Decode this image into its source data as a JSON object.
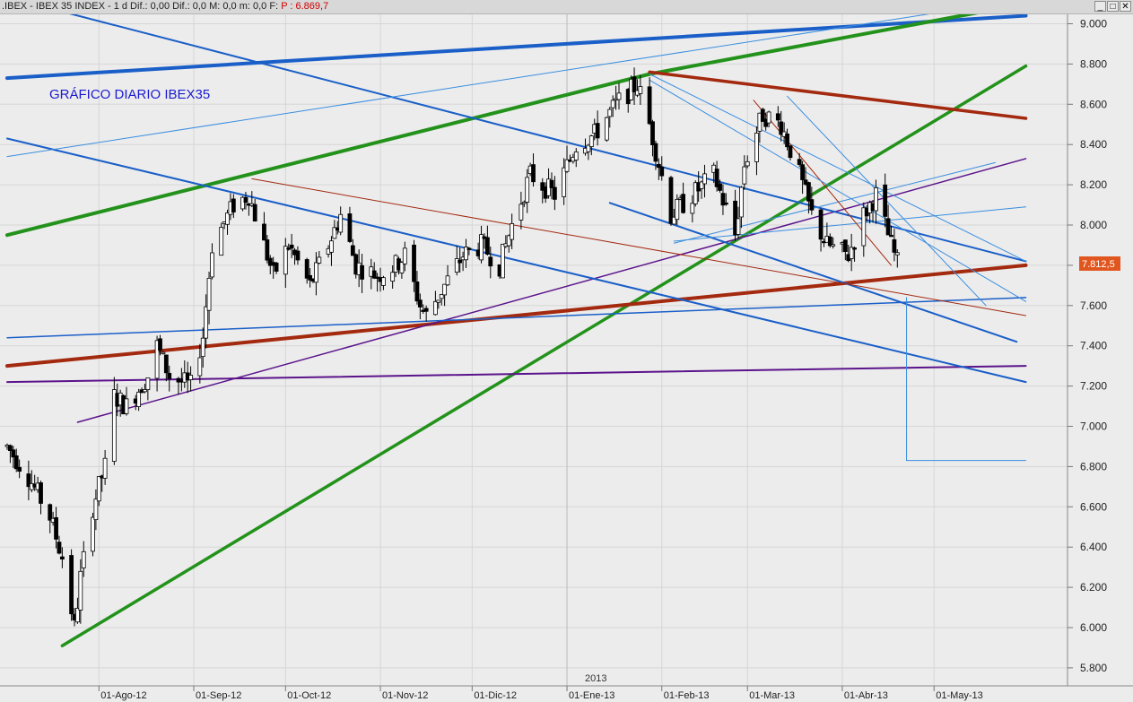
{
  "window": {
    "title": ".IBEX - IBEX 35 INDEX - 1 d Dif.: 0,00 Dif.: 0,0 M: 0,0 m: 0,0 F:",
    "price_label": "P : 6.869,7",
    "buttons": [
      "_",
      "□",
      "✕"
    ]
  },
  "chart_data": {
    "type": "candlestick",
    "title": "GRÁFICO DIARIO IBEX35",
    "year_marker": "2013",
    "last_price_label": "7.812,5",
    "ylim": [
      5800,
      9000
    ],
    "yticks": [
      5800,
      6000,
      6200,
      6400,
      6600,
      6800,
      7000,
      7200,
      7400,
      7600,
      7800,
      8000,
      8200,
      8400,
      8600,
      8800,
      9000
    ],
    "ytick_labels": [
      "5.800",
      "6.000",
      "6.200",
      "6.400",
      "6.600",
      "6.800",
      "7.000",
      "7.200",
      "7.400",
      "7.600",
      "7.800",
      "8.000",
      "8.200",
      "8.400",
      "8.600",
      "8.800",
      "9.000"
    ],
    "x_start": "2012-07-02",
    "xticks": [
      {
        "date": "2012-08-01",
        "label": "01-Ago-12"
      },
      {
        "date": "2012-09-01",
        "label": "01-Sep-12"
      },
      {
        "date": "2012-10-01",
        "label": "01-Oct-12"
      },
      {
        "date": "2012-11-01",
        "label": "01-Nov-12"
      },
      {
        "date": "2012-12-01",
        "label": "01-Dic-12"
      },
      {
        "date": "2013-01-01",
        "label": "01-Ene-13"
      },
      {
        "date": "2013-02-01",
        "label": "01-Feb-13"
      },
      {
        "date": "2013-03-01",
        "label": "01-Mar-13"
      },
      {
        "date": "2013-04-01",
        "label": "01-Abr-13"
      },
      {
        "date": "2013-05-01",
        "label": "01-May-13"
      }
    ],
    "grid": true,
    "price_path": [
      [
        "2012-07-02",
        6900
      ],
      [
        "2012-07-09",
        6750
      ],
      [
        "2012-07-16",
        6550
      ],
      [
        "2012-07-20",
        6350
      ],
      [
        "2012-07-24",
        6000
      ],
      [
        "2012-07-26",
        6250
      ],
      [
        "2012-07-30",
        6600
      ],
      [
        "2012-08-03",
        6800
      ],
      [
        "2012-08-06",
        7150
      ],
      [
        "2012-08-10",
        7100
      ],
      [
        "2012-08-17",
        7250
      ],
      [
        "2012-08-20",
        7400
      ],
      [
        "2012-08-24",
        7250
      ],
      [
        "2012-08-31",
        7200
      ],
      [
        "2012-09-04",
        7450
      ],
      [
        "2012-09-07",
        7900
      ],
      [
        "2012-09-14",
        8100
      ],
      [
        "2012-09-19",
        8150
      ],
      [
        "2012-09-24",
        7900
      ],
      [
        "2012-09-27",
        7750
      ],
      [
        "2012-10-02",
        7900
      ],
      [
        "2012-10-09",
        7700
      ],
      [
        "2012-10-15",
        7900
      ],
      [
        "2012-10-19",
        8050
      ],
      [
        "2012-10-24",
        7800
      ],
      [
        "2012-10-31",
        7750
      ],
      [
        "2012-11-06",
        7800
      ],
      [
        "2012-11-09",
        7850
      ],
      [
        "2012-11-14",
        7600
      ],
      [
        "2012-11-16",
        7550
      ],
      [
        "2012-11-22",
        7700
      ],
      [
        "2012-11-28",
        7850
      ],
      [
        "2012-12-04",
        7900
      ],
      [
        "2012-12-10",
        7800
      ],
      [
        "2012-12-14",
        8000
      ],
      [
        "2012-12-20",
        8250
      ],
      [
        "2012-12-28",
        8150
      ],
      [
        "2013-01-04",
        8400
      ],
      [
        "2013-01-10",
        8450
      ],
      [
        "2013-01-17",
        8600
      ],
      [
        "2013-01-24",
        8700
      ],
      [
        "2013-01-28",
        8500
      ],
      [
        "2013-02-04",
        8050
      ],
      [
        "2013-02-11",
        8150
      ],
      [
        "2013-02-18",
        8250
      ],
      [
        "2013-02-25",
        7950
      ],
      [
        "2013-02-28",
        8300
      ],
      [
        "2013-03-06",
        8550
      ],
      [
        "2013-03-12",
        8500
      ],
      [
        "2013-03-18",
        8250
      ],
      [
        "2013-03-22",
        8050
      ],
      [
        "2013-03-27",
        7900
      ],
      [
        "2013-04-03",
        7850
      ],
      [
        "2013-04-08",
        8050
      ],
      [
        "2013-04-12",
        8150
      ],
      [
        "2013-04-17",
        7900
      ],
      [
        "2013-04-19",
        7812
      ]
    ],
    "colors": {
      "blue": "#1a5fc8",
      "green": "#23921b",
      "brown": "#a3290f",
      "purple": "#5b138b",
      "light_blue": "#3a8ee0"
    }
  }
}
